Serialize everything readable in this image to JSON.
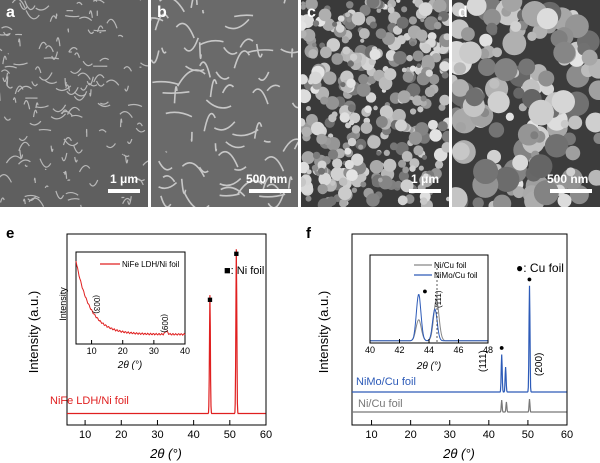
{
  "sem_panels": [
    {
      "label": "a",
      "scale": "1 μm"
    },
    {
      "label": "b",
      "scale": "500 nm"
    },
    {
      "label": "c",
      "scale": "1 μm"
    },
    {
      "label": "d",
      "scale": "500 nm"
    }
  ],
  "chart_data": [
    {
      "panel": "e",
      "type": "line",
      "xlabel": "2θ (°)",
      "ylabel": "Intensity (a.u.)",
      "xlim": [
        5,
        60
      ],
      "xticks": [
        10,
        20,
        30,
        40,
        50,
        60
      ],
      "legend_note": "■: Ni foil",
      "series": [
        {
          "name": "NiFe LDH/Ni foil",
          "color": "#e02020",
          "baseline": 0.06,
          "peaks": [
            {
              "x": 44.5,
              "y": 0.62,
              "marker": "■"
            },
            {
              "x": 51.8,
              "y": 0.86,
              "marker": "■"
            }
          ]
        }
      ],
      "inset": {
        "xlabel": "2θ (°)",
        "ylabel": "Intensity",
        "xlim": [
          5,
          40
        ],
        "xticks": [
          10,
          20,
          30,
          40
        ],
        "series": [
          {
            "name": "NiFe LDH/Ni foil",
            "color": "#e02020"
          }
        ],
        "annotations": [
          {
            "x": 11.5,
            "text": "(003)"
          },
          {
            "x": 34,
            "text": "(009)"
          }
        ]
      }
    },
    {
      "panel": "f",
      "type": "line",
      "xlabel": "2θ (°)",
      "ylabel": "Intensity (a.u.)",
      "xlim": [
        5,
        60
      ],
      "xticks": [
        10,
        20,
        30,
        40,
        50,
        60
      ],
      "legend_note": "●: Cu foil",
      "series": [
        {
          "name": "NiMo/Cu foil",
          "color": "#2d5bb8",
          "peaks": [
            {
              "x": 43.3,
              "y": 0.3,
              "marker": "●"
            },
            {
              "x": 44.3,
              "y": 0.2
            },
            {
              "x": 50.4,
              "y": 0.85,
              "marker": "●"
            }
          ]
        },
        {
          "name": "Ni/Cu foil",
          "color": "#777777",
          "peaks": [
            {
              "x": 43.3,
              "y": 0.12
            },
            {
              "x": 44.5,
              "y": 0.1
            },
            {
              "x": 50.4,
              "y": 0.13
            }
          ]
        }
      ],
      "annotations": [
        {
          "x": 44.5,
          "text": "(111)"
        },
        {
          "x": 51.5,
          "text": "(200)"
        }
      ],
      "inset": {
        "xlim": [
          40,
          48
        ],
        "xticks": [
          40,
          42,
          44,
          46,
          48
        ],
        "xlabel": "2θ (°)",
        "series": [
          {
            "name": "Ni/Cu foil",
            "color": "#888888"
          },
          {
            "name": "NiMo/Cu foil",
            "color": "#2d5bb8"
          }
        ],
        "annotations": [
          {
            "x": 44.5,
            "text": "(111)"
          }
        ]
      }
    }
  ]
}
